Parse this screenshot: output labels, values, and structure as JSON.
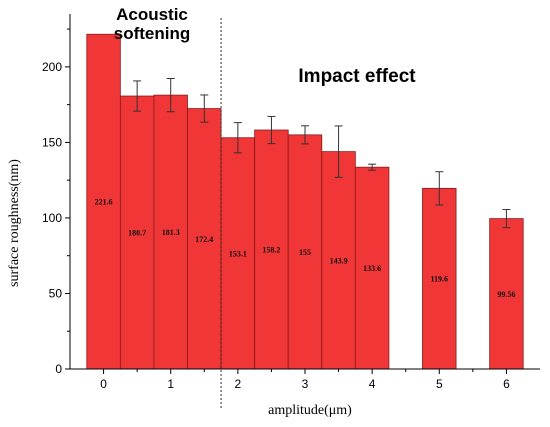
{
  "chart_data": {
    "type": "bar",
    "xlabel": "amplitude(μm)",
    "ylabel": "surface roughness(nm)",
    "x_ticks": [
      "0",
      "1",
      "2",
      "3",
      "4",
      "5",
      "6"
    ],
    "y_ticks": [
      "0",
      "50",
      "100",
      "150",
      "200"
    ],
    "xlim": [
      -0.5,
      6.5
    ],
    "ylim": [
      0,
      235
    ],
    "x": [
      0,
      0.5,
      1,
      1.5,
      2,
      2.5,
      3,
      3.5,
      4,
      5,
      6
    ],
    "values": [
      221.6,
      180.7,
      181.3,
      172.4,
      153.1,
      158.2,
      155,
      143.9,
      133.6,
      119.6,
      99.56
    ],
    "value_labels": [
      "221.6",
      "180.7",
      "181.3",
      "172.4",
      "153.1",
      "158.2",
      "155",
      "143.9",
      "133.6",
      "119.6",
      "99.56"
    ],
    "error": [
      0,
      10,
      11,
      9,
      10,
      9,
      6,
      17,
      2,
      11,
      6
    ],
    "bar_color": "#f03636",
    "bar_edge_color": "#8a1a1a",
    "regions": [
      {
        "label_line1": "Acoustic",
        "label_line2": "softening"
      },
      {
        "label_line1": "Impact effect"
      }
    ],
    "divider_x": 1.75
  }
}
